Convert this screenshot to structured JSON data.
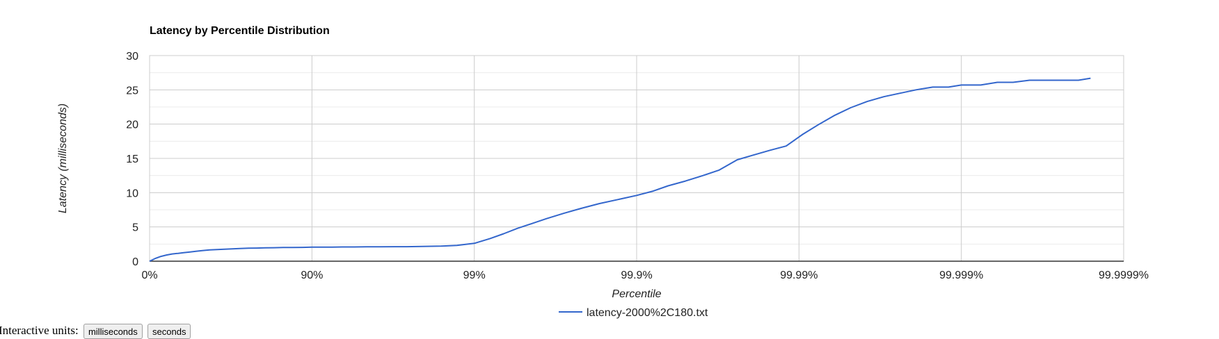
{
  "chart_data": {
    "type": "line",
    "title": "Latency by Percentile Distribution",
    "xlabel": "Percentile",
    "ylabel": "Latency (milliseconds)",
    "x_scale": "log-reciprocal (1/(1-p))",
    "x_tick_labels": [
      "0%",
      "90%",
      "99%",
      "99.9%",
      "99.99%",
      "99.999%",
      "99.9999%"
    ],
    "x_tick_percentiles": [
      0,
      90,
      99,
      99.9,
      99.99,
      99.999,
      99.9999
    ],
    "ylim": [
      0,
      30
    ],
    "y_ticks": [
      0,
      5,
      10,
      15,
      20,
      25,
      30
    ],
    "grid": true,
    "legend_position": "bottom",
    "series": [
      {
        "name": "latency-2000%2C180.txt",
        "color": "#3366cc",
        "percentiles": [
          0,
          7.7,
          14.9,
          21.3,
          27.3,
          33.3,
          38.2,
          43.7,
          48.1,
          52.6,
          57.3,
          61.6,
          65.5,
          69.0,
          72.2,
          75.4,
          78.1,
          80.6,
          82.8,
          85.0,
          86.8,
          88.6,
          90.0,
          91.3,
          92.5,
          93.5,
          94.5,
          95.4,
          96.2,
          96.9,
          97.4,
          97.9,
          98.4,
          98.72,
          99.0,
          99.2,
          99.34,
          99.46,
          99.56,
          99.64,
          99.72,
          99.78,
          99.83,
          99.87,
          99.9,
          99.92,
          99.936,
          99.95,
          99.961,
          99.969,
          99.976,
          99.981,
          99.985,
          99.988,
          99.9905,
          99.9925,
          99.994,
          99.9952,
          99.9962,
          99.997,
          99.9976,
          99.9981,
          99.9985,
          99.9988,
          99.999,
          99.99924,
          99.9994,
          99.99952,
          99.99962,
          99.9997,
          99.99976,
          99.99981,
          99.99984
        ],
        "values": [
          0.0,
          0.4,
          0.7,
          0.9,
          1.05,
          1.15,
          1.25,
          1.35,
          1.45,
          1.55,
          1.65,
          1.7,
          1.75,
          1.8,
          1.85,
          1.9,
          1.92,
          1.95,
          1.97,
          2.0,
          2.0,
          2.02,
          2.05,
          2.05,
          2.06,
          2.08,
          2.08,
          2.1,
          2.1,
          2.12,
          2.12,
          2.15,
          2.2,
          2.3,
          2.6,
          3.3,
          4.0,
          4.8,
          5.5,
          6.2,
          7.0,
          7.7,
          8.4,
          9.0,
          9.6,
          10.2,
          11.0,
          11.7,
          12.5,
          13.3,
          14.8,
          15.5,
          16.2,
          16.8,
          18.5,
          20.0,
          21.3,
          22.4,
          23.3,
          24.0,
          24.5,
          25.0,
          25.4,
          25.4,
          25.7,
          25.7,
          26.1,
          26.1,
          26.4,
          26.4,
          26.4,
          26.4,
          26.7
        ]
      }
    ]
  },
  "controls": {
    "label": "Interactive units:",
    "buttons": [
      "milliseconds",
      "seconds"
    ]
  }
}
